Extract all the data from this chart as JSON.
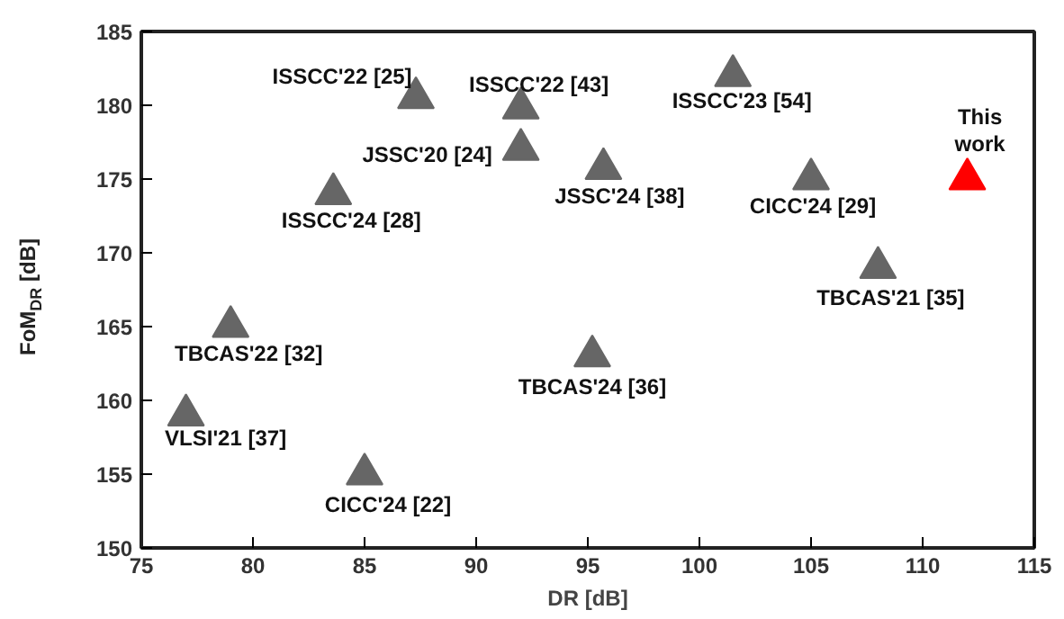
{
  "chart_data": {
    "type": "scatter",
    "xlabel": "DR [dB]",
    "ylabel": "FoM$_{DR}$ [dB]",
    "xlim": [
      75,
      115
    ],
    "ylim": [
      150,
      185
    ],
    "xticks": [
      75,
      80,
      85,
      90,
      95,
      100,
      105,
      110,
      115
    ],
    "yticks": [
      150,
      155,
      160,
      165,
      170,
      175,
      180,
      185
    ],
    "grid": false,
    "marker": "triangle",
    "series": [
      {
        "color": "#666666",
        "x": [
          87.3,
          92,
          92,
          83.6,
          79,
          77,
          85,
          95.7,
          101.5,
          105,
          108,
          95.2
        ],
        "values": [
          180.5,
          179.8,
          177,
          174,
          165,
          159,
          155,
          175.7,
          182,
          175,
          169,
          163
        ]
      },
      {
        "color": "#ff0000",
        "x": [
          112
        ],
        "values": [
          175
        ]
      }
    ],
    "annotations": [
      {
        "text": "ISSCC'22 [25]",
        "x": 87.3,
        "y": 180.5
      },
      {
        "text": "ISSCC'22 [43]",
        "x": 92,
        "y": 179.8
      },
      {
        "text": "JSSC'20 [24]",
        "x": 92,
        "y": 177
      },
      {
        "text": "ISSCC'24 [28]",
        "x": 83.6,
        "y": 174
      },
      {
        "text": "TBCAS'22 [32]",
        "x": 79,
        "y": 165
      },
      {
        "text": "VLSI'21 [37]",
        "x": 77,
        "y": 159
      },
      {
        "text": "CICC'24 [22]",
        "x": 85,
        "y": 155
      },
      {
        "text": "JSSC'24 [38]",
        "x": 95.7,
        "y": 175.7
      },
      {
        "text": "ISSCC'23 [54]",
        "x": 101.5,
        "y": 182
      },
      {
        "text": "CICC'24 [29]",
        "x": 105,
        "y": 175
      },
      {
        "text": "TBCAS'21 [35]",
        "x": 108,
        "y": 169
      },
      {
        "text": "TBCAS'24 [36]",
        "x": 95.2,
        "y": 163
      },
      {
        "text": "This\nwork",
        "x": 112,
        "y": 175
      }
    ]
  }
}
